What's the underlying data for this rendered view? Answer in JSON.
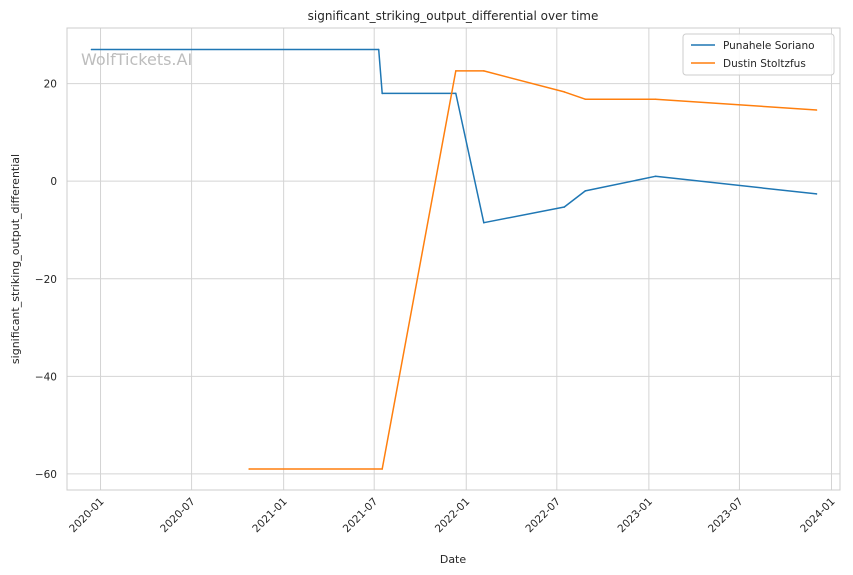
{
  "chart_data": {
    "type": "line",
    "title": "significant_striking_output_differential over time",
    "xlabel": "Date",
    "ylabel": "significant_striking_output_differential",
    "watermark": "WolfTickets.AI",
    "x_ticks": [
      "2020-01",
      "2020-07",
      "2021-01",
      "2021-07",
      "2022-01",
      "2022-07",
      "2023-01",
      "2023-07",
      "2024-01"
    ],
    "y_ticks": [
      -60,
      -40,
      -20,
      0,
      20
    ],
    "y_tick_labels": [
      "−60",
      "−40",
      "−20",
      "0",
      "20"
    ],
    "xlim": [
      "2019-10-26",
      "2024-01-18"
    ],
    "ylim": [
      -63.3,
      31.4
    ],
    "grid": true,
    "legend_position": "top-right",
    "series": [
      {
        "name": "Punahele Soriano",
        "color": "#1f77b4",
        "points": [
          {
            "x": "2019-12-14",
            "y": 27.0
          },
          {
            "x": "2021-07-10",
            "y": 27.0
          },
          {
            "x": "2021-07-17",
            "y": 18.0
          },
          {
            "x": "2021-12-11",
            "y": 18.0
          },
          {
            "x": "2022-02-05",
            "y": -8.5
          },
          {
            "x": "2022-07-16",
            "y": -5.3
          },
          {
            "x": "2022-08-27",
            "y": -2.0
          },
          {
            "x": "2023-01-14",
            "y": 1.0
          },
          {
            "x": "2023-12-02",
            "y": -2.6
          }
        ]
      },
      {
        "name": "Dustin Stoltzfus",
        "color": "#ff7f0e",
        "points": [
          {
            "x": "2020-10-24",
            "y": -59.0
          },
          {
            "x": "2021-07-17",
            "y": -59.0
          },
          {
            "x": "2021-12-11",
            "y": 22.6
          },
          {
            "x": "2022-02-05",
            "y": 22.6
          },
          {
            "x": "2022-07-16",
            "y": 18.3
          },
          {
            "x": "2022-08-27",
            "y": 16.8
          },
          {
            "x": "2023-01-14",
            "y": 16.8
          },
          {
            "x": "2023-12-02",
            "y": 14.6
          }
        ]
      }
    ]
  }
}
